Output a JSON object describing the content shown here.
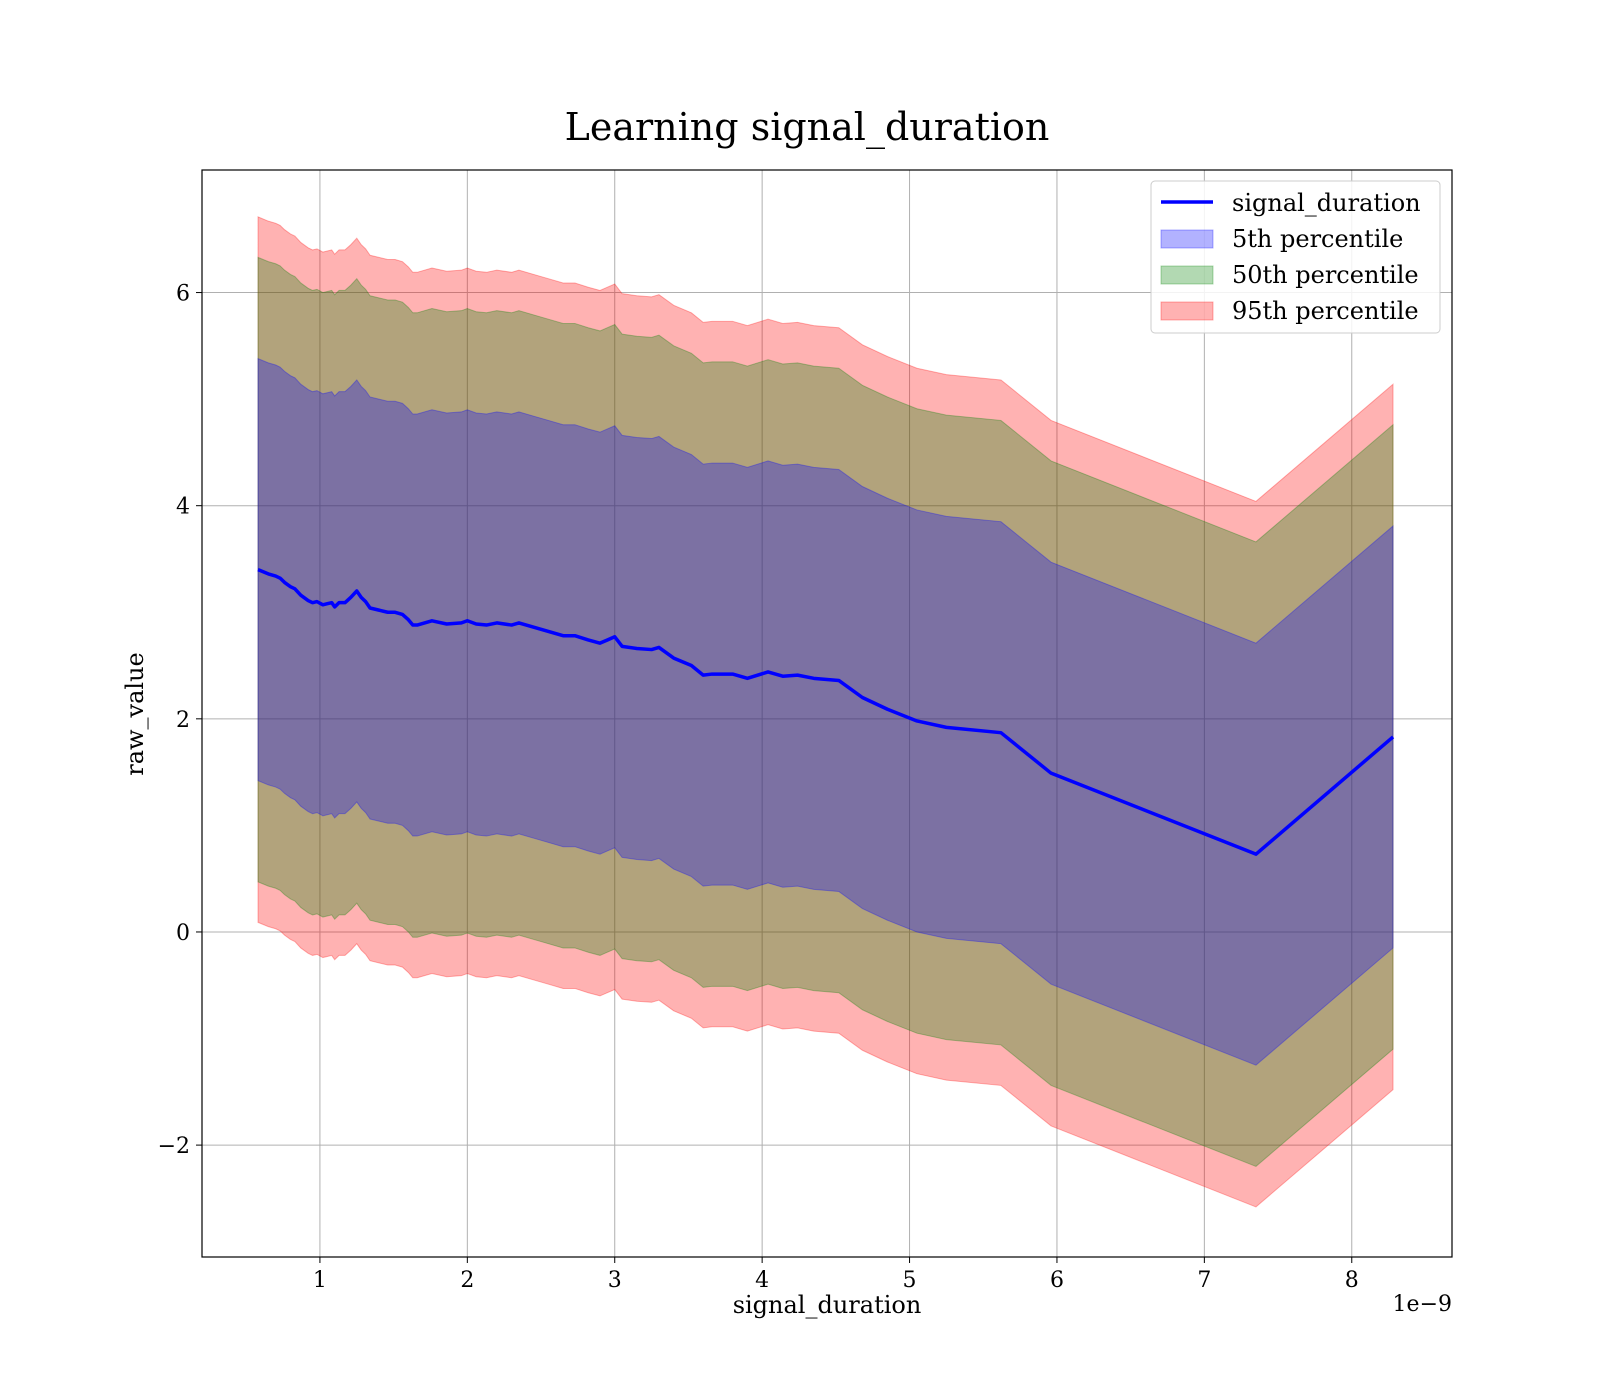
{
  "chart_data": {
    "type": "area",
    "title": "Learning signal_duration",
    "xlabel": "signal_duration",
    "ylabel": "raw_value",
    "x_offset_label": "1e−9",
    "xlim": [
      0.2,
      8.68
    ],
    "ylim": [
      -3.05,
      7.15
    ],
    "xticks": [
      1,
      2,
      3,
      4,
      5,
      6,
      7,
      8
    ],
    "xtick_labels": [
      "1",
      "2",
      "3",
      "4",
      "5",
      "6",
      "7",
      "8"
    ],
    "yticks": [
      -2,
      0,
      2,
      4,
      6
    ],
    "ytick_labels": [
      "−2",
      "0",
      "2",
      "4",
      "6"
    ],
    "grid": true,
    "legend_position": "top-right",
    "x": [
      0.58,
      0.65,
      0.7,
      0.73,
      0.76,
      0.8,
      0.83,
      0.87,
      0.92,
      0.95,
      0.98,
      1.02,
      1.05,
      1.08,
      1.1,
      1.13,
      1.17,
      1.21,
      1.25,
      1.28,
      1.31,
      1.34,
      1.4,
      1.46,
      1.51,
      1.56,
      1.6,
      1.63,
      1.66,
      1.76,
      1.86,
      1.96,
      2.0,
      2.06,
      2.13,
      2.2,
      2.3,
      2.35,
      2.45,
      2.55,
      2.65,
      2.73,
      2.82,
      2.9,
      2.95,
      3.0,
      3.05,
      3.15,
      3.25,
      3.3,
      3.4,
      3.52,
      3.6,
      3.66,
      3.7,
      3.8,
      3.9,
      4.04,
      4.14,
      4.24,
      4.35,
      4.52,
      4.68,
      4.85,
      5.05,
      5.25,
      5.62,
      5.96,
      7.35,
      8.28
    ],
    "series": [
      {
        "name": "signal_duration",
        "type": "line",
        "color": "#0000ff",
        "values": [
          3.4,
          3.36,
          3.34,
          3.32,
          3.28,
          3.24,
          3.22,
          3.16,
          3.11,
          3.09,
          3.1,
          3.07,
          3.08,
          3.09,
          3.05,
          3.09,
          3.09,
          3.14,
          3.2,
          3.14,
          3.1,
          3.04,
          3.02,
          3.0,
          3.0,
          2.98,
          2.93,
          2.88,
          2.88,
          2.92,
          2.89,
          2.9,
          2.92,
          2.89,
          2.88,
          2.9,
          2.88,
          2.9,
          2.86,
          2.82,
          2.78,
          2.78,
          2.74,
          2.71,
          2.74,
          2.77,
          2.68,
          2.66,
          2.65,
          2.67,
          2.57,
          2.5,
          2.41,
          2.42,
          2.42,
          2.42,
          2.38,
          2.44,
          2.4,
          2.41,
          2.38,
          2.36,
          2.2,
          2.09,
          1.98,
          1.92,
          1.87,
          1.49,
          0.73,
          1.83
        ]
      },
      {
        "name": "5th percentile",
        "type": "band",
        "color": "#0000ff",
        "opacity": 0.3,
        "offset": 1.98
      },
      {
        "name": "50th percentile",
        "type": "band",
        "color": "#008000",
        "opacity": 0.3,
        "offset": 2.93
      },
      {
        "name": "95th percentile",
        "type": "band",
        "color": "#ff0000",
        "opacity": 0.3,
        "offset": 3.31
      }
    ]
  }
}
